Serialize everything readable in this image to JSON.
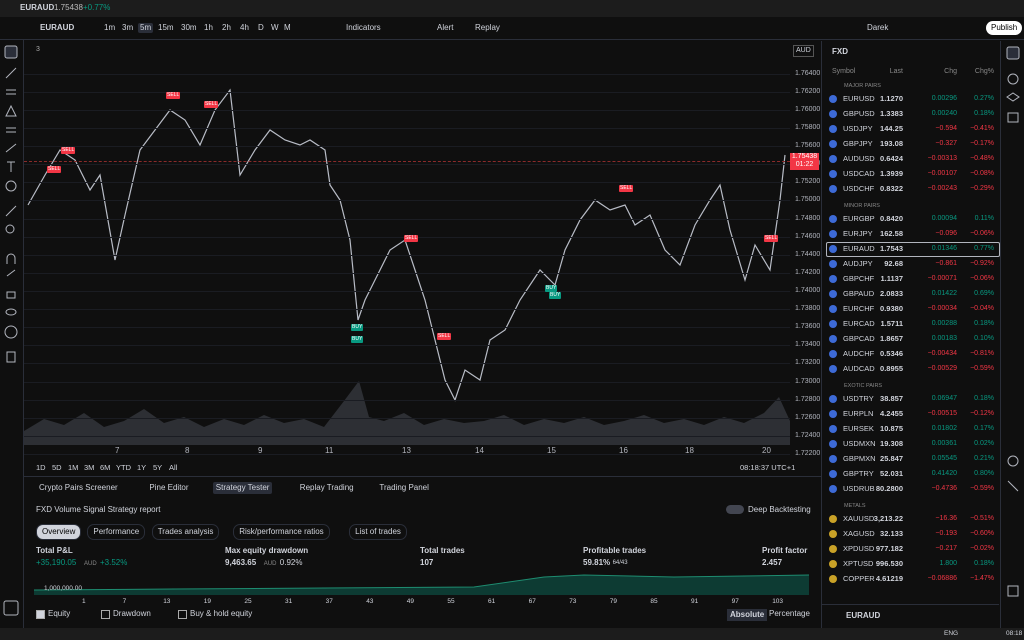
{
  "window": {
    "symbol": "EURAUD",
    "price": "1.75438",
    "change": "+0.77%"
  },
  "toolbar": {
    "symbol": "EURAUD",
    "intervals": [
      "1m",
      "3m",
      "5m",
      "15m",
      "30m",
      "1h",
      "2h",
      "4h",
      "D",
      "W",
      "M"
    ],
    "active_interval": 2,
    "indicators": "Indicators",
    "alert": "Alert",
    "replay": "Replay",
    "user": "Darek",
    "publish": "Publish"
  },
  "chart": {
    "currency": "AUD",
    "indicator_count": "3",
    "ylim": [
      1.7198,
      1.7676
    ],
    "yticks": [
      {
        "value": 1.764,
        "label": "1.76400"
      },
      {
        "value": 1.762,
        "label": "1.76200"
      },
      {
        "value": 1.76,
        "label": "1.76000"
      },
      {
        "value": 1.758,
        "label": "1.75800"
      },
      {
        "value": 1.756,
        "label": "1.75600"
      },
      {
        "value": 1.754,
        "label": "1.75400"
      },
      {
        "value": 1.752,
        "label": "1.75200"
      },
      {
        "value": 1.75,
        "label": "1.75000"
      },
      {
        "value": 1.748,
        "label": "1.74800"
      },
      {
        "value": 1.746,
        "label": "1.74600"
      },
      {
        "value": 1.744,
        "label": "1.74400"
      },
      {
        "value": 1.742,
        "label": "1.74200"
      },
      {
        "value": 1.74,
        "label": "1.74000"
      },
      {
        "value": 1.738,
        "label": "1.73800"
      },
      {
        "value": 1.736,
        "label": "1.73600"
      },
      {
        "value": 1.734,
        "label": "1.73400"
      },
      {
        "value": 1.732,
        "label": "1.73200"
      },
      {
        "value": 1.73,
        "label": "1.73000"
      },
      {
        "value": 1.728,
        "label": "1.72800"
      },
      {
        "value": 1.726,
        "label": "1.72600"
      },
      {
        "value": 1.724,
        "label": "1.72400"
      },
      {
        "value": 1.722,
        "label": "1.72200"
      }
    ],
    "last_price": {
      "value": 1.75438,
      "label": "1.75438"
    },
    "countdown": "01:22",
    "dates": [
      "7",
      "8",
      "9",
      "11",
      "13",
      "14",
      "15",
      "16",
      "18",
      "20"
    ],
    "signals": [
      {
        "label": "SELL",
        "color": "#f23645"
      },
      {
        "label": "SELL",
        "color": "#f23645"
      },
      {
        "label": "SELL",
        "color": "#f23645"
      },
      {
        "label": "SELL",
        "color": "#f23645"
      },
      {
        "label": "SELL",
        "color": "#f23645"
      },
      {
        "label": "SELL",
        "color": "#f23645"
      },
      {
        "label": "SELL",
        "color": "#f23645"
      },
      {
        "label": "SELL",
        "color": "#f23645"
      },
      {
        "label": "BUY",
        "color": "#089981"
      },
      {
        "label": "BUY",
        "color": "#089981"
      },
      {
        "label": "BUY",
        "color": "#089981"
      },
      {
        "label": "BUY",
        "color": "#089981"
      }
    ],
    "ranges": [
      "1D",
      "5D",
      "1M",
      "3M",
      "6M",
      "YTD",
      "1Y",
      "5Y",
      "All"
    ],
    "clock": "08:18:37 UTC+1"
  },
  "tester": {
    "tabs": [
      "Crypto Pairs Screener",
      "Pine Editor",
      "Strategy Tester",
      "Replay Trading",
      "Trading Panel"
    ],
    "active_tab": 2,
    "title": "FXD Volume Signal Strategy report",
    "deep": "Deep Backtesting",
    "subtabs": [
      "Overview",
      "Performance",
      "Trades analysis",
      "Risk/performance ratios",
      "List of trades"
    ],
    "metrics": [
      {
        "label": "Total P&L",
        "value": "+35,190.05",
        "unit": "AUD",
        "extra": "+3.52%",
        "color": "#089981"
      },
      {
        "label": "Max equity drawdown",
        "value": "9,463.65",
        "unit": "AUD",
        "extra": "0.92%",
        "color": "#d1d4dc"
      },
      {
        "label": "Total trades",
        "value": "107",
        "color": "#d1d4dc"
      },
      {
        "label": "Profitable trades",
        "value": "59.81%",
        "extra": "64/43",
        "color": "#d1d4dc"
      },
      {
        "label": "Profit factor",
        "value": "2.457",
        "color": "#d1d4dc"
      }
    ],
    "equity_axis": "1,000,000.00",
    "trade_axis": [
      "1",
      "7",
      "13",
      "19",
      "25",
      "31",
      "37",
      "43",
      "49",
      "55",
      "61",
      "67",
      "73",
      "79",
      "85",
      "91",
      "97",
      "103"
    ],
    "checks": [
      "Equity",
      "Drawdown",
      "Buy & hold equity"
    ],
    "modes": [
      "Absolute",
      "Percentage"
    ]
  },
  "watchlist": {
    "title": "FXD",
    "headers": [
      "Symbol",
      "Last",
      "Chg",
      "Chg%"
    ],
    "colors": {
      "up": "#089981",
      "down": "#f23645"
    },
    "groups": [
      {
        "name": "MAJOR PAIRS",
        "rows": [
          [
            "EURUSD",
            "1.1270",
            "0.00296",
            "0.27%"
          ],
          [
            "GBPUSD",
            "1.3383",
            "0.00240",
            "0.18%"
          ],
          [
            "USDJPY",
            "144.25",
            "−0.594",
            "−0.41%"
          ],
          [
            "GBPJPY",
            "193.08",
            "−0.327",
            "−0.17%"
          ],
          [
            "AUDUSD",
            "0.6424",
            "−0.00313",
            "−0.48%"
          ],
          [
            "USDCAD",
            "1.3939",
            "−0.00107",
            "−0.08%"
          ],
          [
            "USDCHF",
            "0.8322",
            "−0.00243",
            "−0.29%"
          ]
        ]
      },
      {
        "name": "MINOR PAIRS",
        "rows": [
          [
            "EURGBP",
            "0.8420",
            "0.00094",
            "0.11%"
          ],
          [
            "EURJPY",
            "162.58",
            "−0.096",
            "−0.06%"
          ],
          [
            "EURAUD",
            "1.7543",
            "0.01346",
            "0.77%"
          ],
          [
            "AUDJPY",
            "92.68",
            "−0.861",
            "−0.92%"
          ],
          [
            "GBPCHF",
            "1.1137",
            "−0.00071",
            "−0.06%"
          ],
          [
            "GBPAUD",
            "2.0833",
            "0.01422",
            "0.69%"
          ],
          [
            "EURCHF",
            "0.9380",
            "−0.00034",
            "−0.04%"
          ],
          [
            "EURCAD",
            "1.5711",
            "0.00288",
            "0.18%"
          ],
          [
            "GBPCAD",
            "1.8657",
            "0.00183",
            "0.10%"
          ],
          [
            "AUDCHF",
            "0.5346",
            "−0.00434",
            "−0.81%"
          ],
          [
            "AUDCAD",
            "0.8955",
            "−0.00529",
            "−0.59%"
          ]
        ]
      },
      {
        "name": "EXOTIC PAIRS",
        "rows": [
          [
            "USDTRY",
            "38.857",
            "0.06947",
            "0.18%"
          ],
          [
            "EURPLN",
            "4.2455",
            "−0.00515",
            "−0.12%"
          ],
          [
            "EURSEK",
            "10.875",
            "0.01802",
            "0.17%"
          ],
          [
            "USDMXN",
            "19.308",
            "0.00361",
            "0.02%"
          ],
          [
            "GBPMXN",
            "25.847",
            "0.05545",
            "0.21%"
          ],
          [
            "GBPTRY",
            "52.031",
            "0.41420",
            "0.80%"
          ],
          [
            "USDRUB",
            "80.2800",
            "−0.4736",
            "−0.59%"
          ]
        ]
      },
      {
        "name": "METALS",
        "rows": [
          [
            "XAUUSD",
            "3,213.22",
            "−16.36",
            "−0.51%"
          ],
          [
            "XAGUSD",
            "32.133",
            "−0.193",
            "−0.60%"
          ],
          [
            "XPDUSD",
            "977.182",
            "−0.217",
            "−0.02%"
          ],
          [
            "XPTUSD",
            "996.530",
            "1.800",
            "0.18%"
          ],
          [
            "COPPER",
            "4.61219",
            "−0.06886",
            "−1.47%"
          ]
        ]
      }
    ],
    "footer_symbol": "EURAUD"
  },
  "taskbar": {
    "lang": "ENG",
    "time": "08:18"
  }
}
